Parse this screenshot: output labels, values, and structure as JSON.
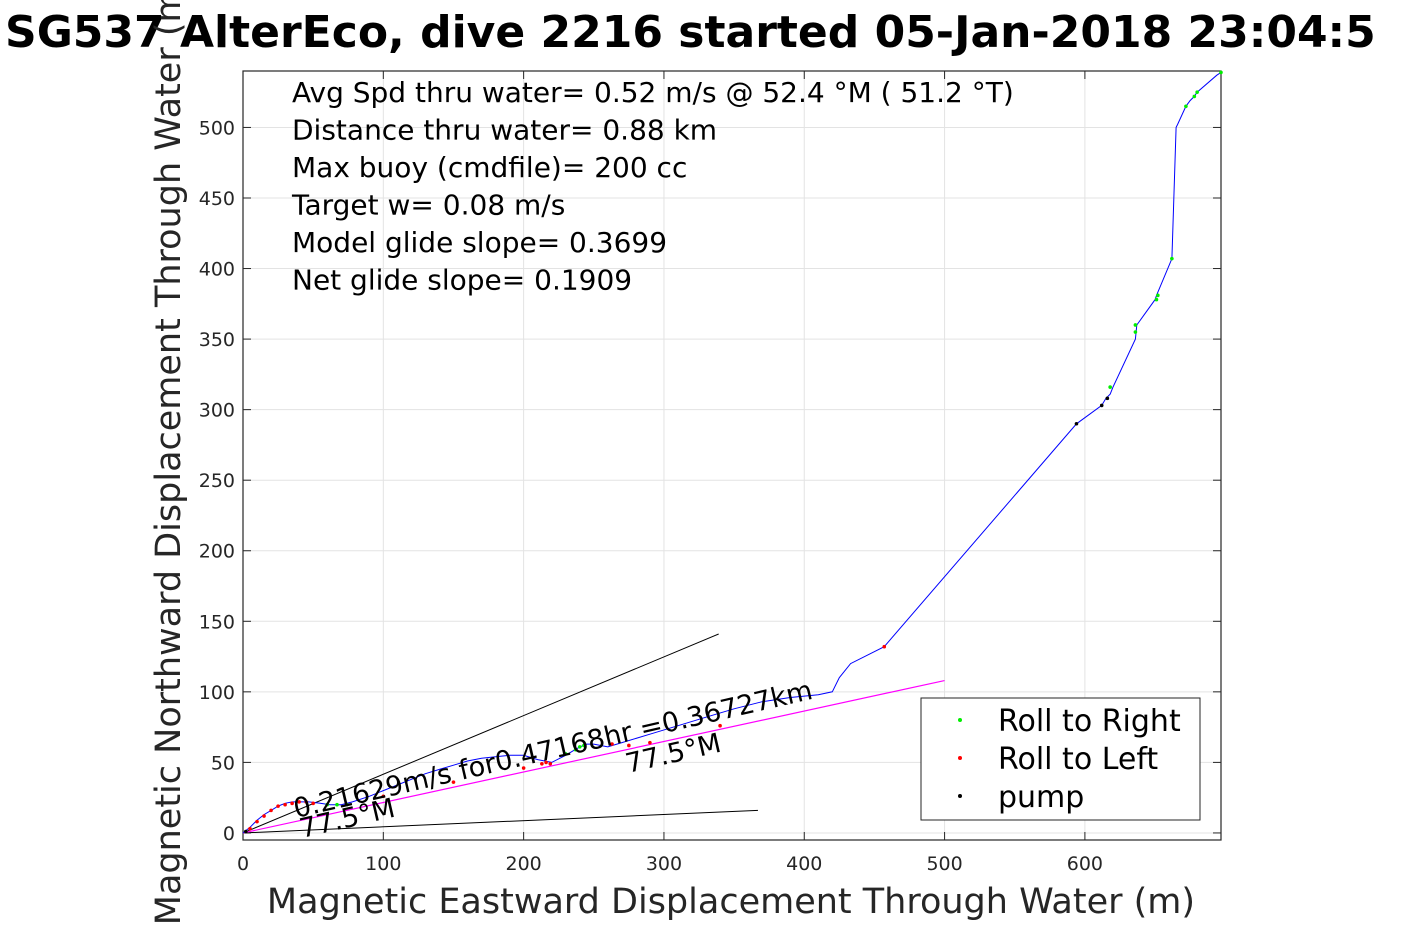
{
  "chart_data": {
    "type": "scatter",
    "title": "SG537 AlterEco, dive 2216 started 05-Jan-2018 23:04:5",
    "xlabel": "Magnetic Eastward Displacement Through Water (m)",
    "ylabel": "Magnetic Northward Displacement Through Water (m)",
    "xlim": [
      0,
      697
    ],
    "ylim": [
      -5,
      540
    ],
    "xticks": [
      0,
      100,
      200,
      300,
      400,
      500,
      600
    ],
    "yticks": [
      0,
      50,
      100,
      150,
      200,
      250,
      300,
      350,
      400,
      450,
      500
    ],
    "grid": true,
    "legend_position": "bottom-right",
    "info_lines": [
      "Avg Spd thru water=  0.52 m/s @  52.4 °M ( 51.2 °T)",
      "Distance thru water=  0.88 km",
      "Max buoy (cmdfile)= 200 cc",
      "Target w= 0.08 m/s",
      "Model glide slope= 0.3699",
      "Net glide slope= 0.1909"
    ],
    "annotations": {
      "speed": "0.21629m/s for0.47168hr =0.36727km",
      "heading_upper": "77.5°M",
      "heading_lower": "77.5°M"
    },
    "colors": {
      "track": "#0000ff",
      "course_line": "#ff00ff",
      "roll_right": "#00ee00",
      "roll_left": "#ff0000",
      "pump": "#000000"
    },
    "series": [
      {
        "name": "track",
        "x": [
          0,
          5,
          10,
          15,
          20,
          25,
          30,
          35,
          40,
          47,
          55,
          62,
          70,
          78,
          90,
          100,
          110,
          120,
          130,
          140,
          150,
          160,
          170,
          180,
          190,
          200,
          210,
          220,
          230,
          235,
          240,
          245,
          250,
          260,
          270,
          290,
          310,
          330,
          350,
          370,
          390,
          410,
          420,
          425,
          433,
          457,
          594,
          612,
          615,
          618,
          620,
          636,
          637,
          650,
          651,
          662,
          665,
          666,
          672,
          675,
          678,
          680,
          694,
          697
        ],
        "y": [
          0,
          4,
          9,
          13,
          16,
          19,
          21,
          22,
          22,
          22,
          21,
          20,
          20,
          22,
          26,
          30,
          34,
          38,
          42,
          45,
          48,
          51,
          53,
          54,
          55,
          55,
          52,
          50,
          55,
          58,
          61,
          63,
          63,
          61,
          64,
          70,
          76,
          82,
          88,
          93,
          96,
          98,
          100,
          110,
          120,
          132,
          290,
          303,
          308,
          311,
          316,
          350,
          360,
          378,
          381,
          407,
          500,
          502,
          515,
          519,
          522,
          525,
          537,
          539
        ]
      },
      {
        "name": "Roll to Right",
        "x": [
          60,
          67,
          74,
          230,
          237,
          240,
          243,
          618,
          636,
          636,
          651,
          652,
          662,
          672,
          678,
          680,
          697
        ],
        "y": [
          20,
          20,
          20,
          56,
          59,
          61,
          62,
          316,
          355,
          360,
          378,
          381,
          407,
          515,
          522,
          525,
          539
        ]
      },
      {
        "name": "Roll to Left",
        "x": [
          5,
          10,
          15,
          20,
          25,
          30,
          35,
          40,
          45,
          50,
          100,
          150,
          200,
          213,
          216,
          219,
          263,
          275,
          290,
          340,
          457
        ],
        "y": [
          3,
          8,
          12,
          16,
          19,
          20,
          21,
          22,
          22,
          21,
          26,
          36,
          46,
          49,
          50,
          49,
          63,
          62,
          64,
          76,
          132
        ]
      },
      {
        "name": "pump",
        "x": [
          2,
          594,
          612,
          616
        ],
        "y": [
          1,
          290,
          303,
          308
        ]
      }
    ],
    "guide_lines": [
      {
        "x": [
          0,
          339
        ],
        "y": [
          0,
          141
        ]
      },
      {
        "x": [
          0,
          367
        ],
        "y": [
          0,
          16
        ]
      },
      {
        "x": [
          0,
          500
        ],
        "y": [
          0,
          108
        ]
      }
    ]
  }
}
